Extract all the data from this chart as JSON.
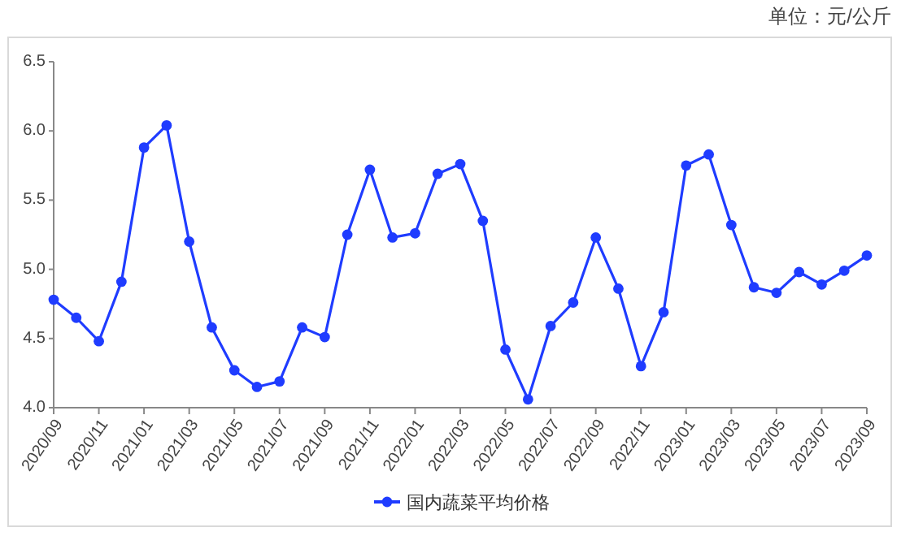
{
  "chart_data": {
    "type": "line",
    "annotations": [
      "单位：元/公斤"
    ],
    "categories": [
      "2020/09",
      null,
      "2020/11",
      null,
      "2021/01",
      null,
      "2021/03",
      null,
      "2021/05",
      null,
      "2021/07",
      null,
      "2021/09",
      null,
      "2021/11",
      null,
      "2022/01",
      null,
      "2022/03",
      null,
      "2022/05",
      null,
      "2022/07",
      null,
      "2022/09",
      null,
      "2022/11",
      null,
      "2023/01",
      null,
      "2023/03",
      null,
      "2023/05",
      null,
      "2023/07",
      null,
      "2023/09"
    ],
    "series": [
      {
        "name": "国内蔬菜平均价格",
        "color": "#1f3cff",
        "values": [
          4.78,
          4.65,
          4.48,
          4.91,
          5.88,
          6.04,
          5.2,
          4.58,
          4.27,
          4.15,
          4.19,
          4.58,
          4.51,
          5.25,
          5.72,
          5.23,
          5.26,
          5.69,
          5.76,
          5.35,
          4.42,
          4.06,
          4.59,
          4.76,
          5.23,
          4.86,
          4.3,
          4.69,
          5.75,
          5.83,
          5.32,
          4.87,
          4.83,
          4.98,
          4.89,
          4.99,
          5.1
        ]
      }
    ],
    "ylim": [
      4,
      6.5
    ],
    "yticks": [
      {
        "value": 4,
        "label": "4.0"
      },
      {
        "value": 4.5,
        "label": "4.5"
      },
      {
        "value": 5,
        "label": "5.0"
      },
      {
        "value": 5.5,
        "label": "5.5"
      },
      {
        "value": 6,
        "label": "6.0"
      },
      {
        "value": 6.5,
        "label": "6.5"
      }
    ],
    "legend": "bottom",
    "marker": "circle",
    "line_style": "solid",
    "grid": false
  }
}
